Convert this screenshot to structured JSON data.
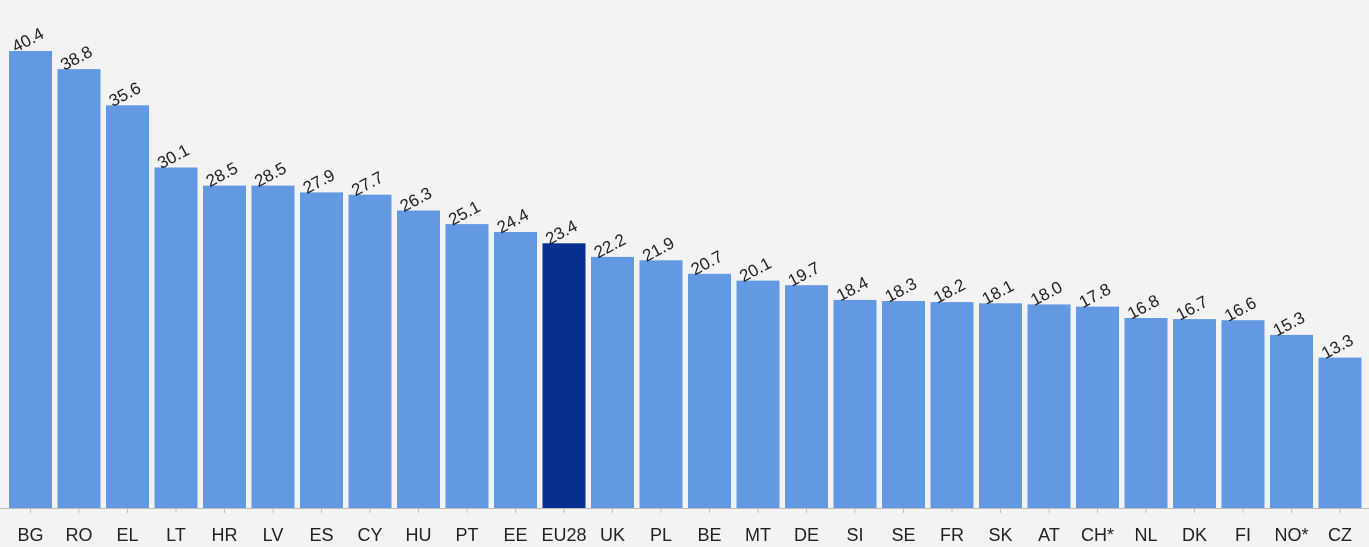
{
  "chart_data": {
    "type": "bar",
    "categories": [
      "BG",
      "RO",
      "EL",
      "LT",
      "HR",
      "LV",
      "ES",
      "CY",
      "HU",
      "PT",
      "EE",
      "EU28",
      "UK",
      "PL",
      "BE",
      "MT",
      "DE",
      "SI",
      "SE",
      "FR",
      "SK",
      "AT",
      "CH*",
      "NL",
      "DK",
      "FI",
      "NO*",
      "CZ"
    ],
    "values": [
      40.4,
      38.8,
      35.6,
      30.1,
      28.5,
      28.5,
      27.9,
      27.7,
      26.3,
      25.1,
      24.4,
      23.4,
      22.2,
      21.9,
      20.7,
      20.1,
      19.7,
      18.4,
      18.3,
      18.2,
      18.1,
      18.0,
      17.8,
      16.8,
      16.7,
      16.6,
      15.3,
      13.3
    ],
    "value_labels": [
      "40.4",
      "38.8",
      "35.6",
      "30.1",
      "28.5",
      "28.5",
      "27.9",
      "27.7",
      "26.3",
      "25.1",
      "24.4",
      "23.4",
      "22.2",
      "21.9",
      "20.7",
      "20.1",
      "19.7",
      "18.4",
      "18.3",
      "18.2",
      "18.1",
      "18.0",
      "17.8",
      "16.8",
      "16.7",
      "16.6",
      "15.3",
      "13.3"
    ],
    "highlight_category": "EU28",
    "title": "",
    "xlabel": "",
    "ylabel": "",
    "ylim": [
      0,
      40.4
    ],
    "grid": false,
    "legend": "none",
    "colors": {
      "bar": "#6399e2",
      "highlight": "#062f8f",
      "background": "#f3f3f3",
      "baseline": "#bdbdbd",
      "text": "#222222"
    }
  }
}
